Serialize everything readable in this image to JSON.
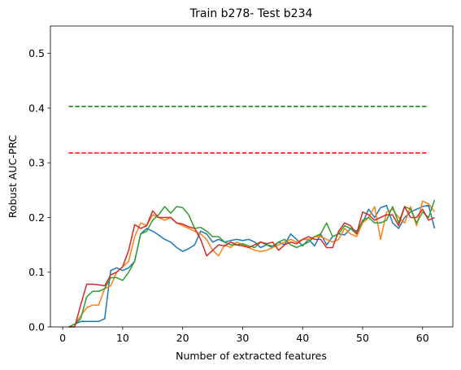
{
  "chart_data": {
    "type": "line",
    "title": "Train b278- Test b234",
    "xlabel": "Number of extracted features",
    "ylabel": "Robust AUC-PRC",
    "x": [
      1,
      2,
      3,
      4,
      5,
      6,
      7,
      8,
      9,
      10,
      11,
      12,
      13,
      14,
      15,
      16,
      17,
      18,
      19,
      20,
      21,
      22,
      23,
      24,
      25,
      26,
      27,
      28,
      29,
      30,
      31,
      32,
      33,
      34,
      35,
      36,
      37,
      38,
      39,
      40,
      41,
      42,
      43,
      44,
      45,
      46,
      47,
      48,
      49,
      50,
      51,
      52,
      53,
      54,
      55,
      56,
      57,
      58,
      59,
      60,
      61,
      62
    ],
    "series": [
      {
        "color": "#1f77b4",
        "values": [
          0,
          0.005,
          0.01,
          0.01,
          0.01,
          0.01,
          0.015,
          0.103,
          0.108,
          0.103,
          0.108,
          0.12,
          0.17,
          0.18,
          0.175,
          0.168,
          0.16,
          0.155,
          0.145,
          0.138,
          0.143,
          0.15,
          0.175,
          0.17,
          0.155,
          0.16,
          0.155,
          0.158,
          0.16,
          0.158,
          0.16,
          0.155,
          0.145,
          0.15,
          0.145,
          0.155,
          0.15,
          0.17,
          0.16,
          0.148,
          0.16,
          0.148,
          0.17,
          0.15,
          0.165,
          0.17,
          0.168,
          0.18,
          0.175,
          0.19,
          0.215,
          0.2,
          0.218,
          0.222,
          0.19,
          0.18,
          0.2,
          0.21,
          0.215,
          0.22,
          0.222,
          0.18
        ]
      },
      {
        "color": "#ff7f0e",
        "values": [
          0,
          0.005,
          0.02,
          0.035,
          0.04,
          0.04,
          0.07,
          0.075,
          0.1,
          0.11,
          0.12,
          0.165,
          0.19,
          0.185,
          0.205,
          0.2,
          0.195,
          0.2,
          0.19,
          0.185,
          0.18,
          0.175,
          0.17,
          0.16,
          0.14,
          0.13,
          0.15,
          0.145,
          0.155,
          0.15,
          0.145,
          0.14,
          0.138,
          0.14,
          0.145,
          0.15,
          0.155,
          0.16,
          0.155,
          0.16,
          0.16,
          0.165,
          0.165,
          0.16,
          0.155,
          0.16,
          0.18,
          0.17,
          0.165,
          0.19,
          0.2,
          0.22,
          0.16,
          0.21,
          0.215,
          0.2,
          0.19,
          0.22,
          0.185,
          0.23,
          0.225,
          0.21
        ]
      },
      {
        "color": "#2ca02c",
        "values": [
          0,
          0.005,
          0.015,
          0.055,
          0.065,
          0.065,
          0.07,
          0.09,
          0.09,
          0.085,
          0.1,
          0.12,
          0.17,
          0.175,
          0.195,
          0.205,
          0.22,
          0.208,
          0.22,
          0.218,
          0.205,
          0.18,
          0.182,
          0.175,
          0.165,
          0.165,
          0.155,
          0.15,
          0.15,
          0.152,
          0.148,
          0.145,
          0.155,
          0.15,
          0.148,
          0.155,
          0.16,
          0.15,
          0.145,
          0.15,
          0.155,
          0.165,
          0.17,
          0.19,
          0.165,
          0.17,
          0.185,
          0.18,
          0.17,
          0.195,
          0.2,
          0.19,
          0.19,
          0.195,
          0.22,
          0.19,
          0.22,
          0.215,
          0.19,
          0.21,
          0.2,
          0.232
        ]
      },
      {
        "color": "#d62728",
        "values": [
          0,
          0,
          0.04,
          0.078,
          0.078,
          0.077,
          0.075,
          0.095,
          0.1,
          0.11,
          0.14,
          0.187,
          0.18,
          0.185,
          0.212,
          0.2,
          0.2,
          0.2,
          0.19,
          0.188,
          0.183,
          0.18,
          0.16,
          0.13,
          0.14,
          0.15,
          0.148,
          0.155,
          0.15,
          0.148,
          0.145,
          0.15,
          0.155,
          0.152,
          0.155,
          0.14,
          0.15,
          0.155,
          0.152,
          0.16,
          0.165,
          0.16,
          0.16,
          0.145,
          0.145,
          0.175,
          0.19,
          0.185,
          0.17,
          0.21,
          0.205,
          0.195,
          0.2,
          0.205,
          0.205,
          0.185,
          0.22,
          0.2,
          0.2,
          0.215,
          0.195,
          0.2
        ]
      }
    ],
    "reference_lines": [
      {
        "color": "#008000",
        "style": "dashed",
        "value": 0.403,
        "xmin": 1,
        "xmax": 61
      },
      {
        "color": "#ff0000",
        "style": "dashed",
        "value": 0.318,
        "xmin": 1,
        "xmax": 61
      }
    ],
    "xlim": [
      -2.05,
      65.05
    ],
    "xticks": [
      0,
      10,
      20,
      30,
      40,
      50,
      60
    ],
    "ylim": [
      0,
      0.55
    ],
    "yticks": [
      {
        "value": 0,
        "label": "0.0"
      },
      0.1,
      0.2,
      0.3,
      0.4,
      0.5
    ],
    "grid": false
  }
}
